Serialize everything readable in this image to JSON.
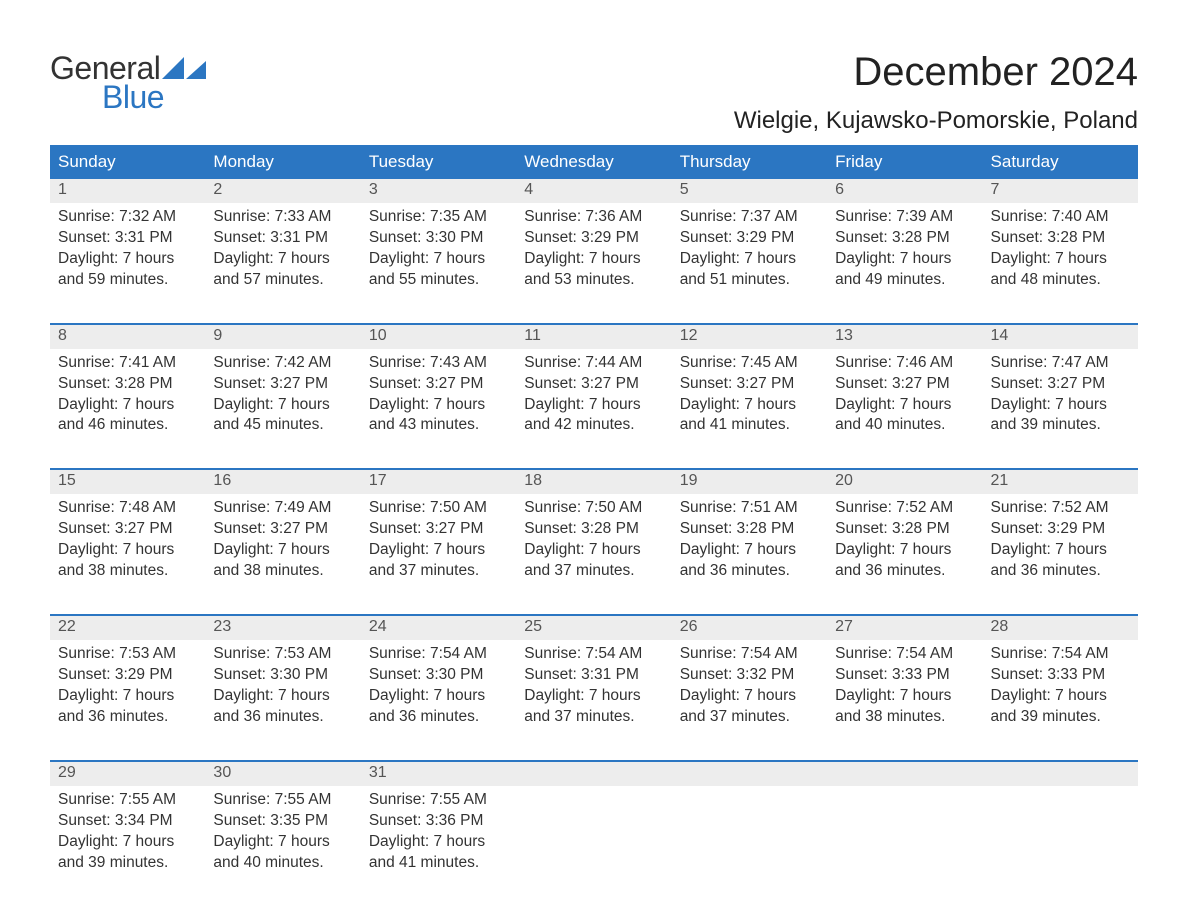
{
  "logo": {
    "text1": "General",
    "text2": "Blue",
    "tri_color": "#2b76c2"
  },
  "title": "December 2024",
  "location": "Wielgie, Kujawsko-Pomorskie, Poland",
  "colors": {
    "header_bg": "#2b76c2",
    "header_text": "#ffffff",
    "daynum_bg": "#ededed",
    "body_text": "#333333",
    "page_bg": "#ffffff"
  },
  "typography": {
    "title_fontsize": 40,
    "location_fontsize": 24,
    "header_fontsize": 17,
    "daynum_fontsize": 16,
    "body_fontsize": 15.5,
    "font_family": "Arial"
  },
  "layout": {
    "columns": 7,
    "rows": 5,
    "cell_body_lines": 4
  },
  "headers": [
    "Sunday",
    "Monday",
    "Tuesday",
    "Wednesday",
    "Thursday",
    "Friday",
    "Saturday"
  ],
  "weeks": [
    [
      {
        "n": "1",
        "sunrise": "7:32 AM",
        "sunset": "3:31 PM",
        "daylight": "7 hours and 59 minutes."
      },
      {
        "n": "2",
        "sunrise": "7:33 AM",
        "sunset": "3:31 PM",
        "daylight": "7 hours and 57 minutes."
      },
      {
        "n": "3",
        "sunrise": "7:35 AM",
        "sunset": "3:30 PM",
        "daylight": "7 hours and 55 minutes."
      },
      {
        "n": "4",
        "sunrise": "7:36 AM",
        "sunset": "3:29 PM",
        "daylight": "7 hours and 53 minutes."
      },
      {
        "n": "5",
        "sunrise": "7:37 AM",
        "sunset": "3:29 PM",
        "daylight": "7 hours and 51 minutes."
      },
      {
        "n": "6",
        "sunrise": "7:39 AM",
        "sunset": "3:28 PM",
        "daylight": "7 hours and 49 minutes."
      },
      {
        "n": "7",
        "sunrise": "7:40 AM",
        "sunset": "3:28 PM",
        "daylight": "7 hours and 48 minutes."
      }
    ],
    [
      {
        "n": "8",
        "sunrise": "7:41 AM",
        "sunset": "3:28 PM",
        "daylight": "7 hours and 46 minutes."
      },
      {
        "n": "9",
        "sunrise": "7:42 AM",
        "sunset": "3:27 PM",
        "daylight": "7 hours and 45 minutes."
      },
      {
        "n": "10",
        "sunrise": "7:43 AM",
        "sunset": "3:27 PM",
        "daylight": "7 hours and 43 minutes."
      },
      {
        "n": "11",
        "sunrise": "7:44 AM",
        "sunset": "3:27 PM",
        "daylight": "7 hours and 42 minutes."
      },
      {
        "n": "12",
        "sunrise": "7:45 AM",
        "sunset": "3:27 PM",
        "daylight": "7 hours and 41 minutes."
      },
      {
        "n": "13",
        "sunrise": "7:46 AM",
        "sunset": "3:27 PM",
        "daylight": "7 hours and 40 minutes."
      },
      {
        "n": "14",
        "sunrise": "7:47 AM",
        "sunset": "3:27 PM",
        "daylight": "7 hours and 39 minutes."
      }
    ],
    [
      {
        "n": "15",
        "sunrise": "7:48 AM",
        "sunset": "3:27 PM",
        "daylight": "7 hours and 38 minutes."
      },
      {
        "n": "16",
        "sunrise": "7:49 AM",
        "sunset": "3:27 PM",
        "daylight": "7 hours and 38 minutes."
      },
      {
        "n": "17",
        "sunrise": "7:50 AM",
        "sunset": "3:27 PM",
        "daylight": "7 hours and 37 minutes."
      },
      {
        "n": "18",
        "sunrise": "7:50 AM",
        "sunset": "3:28 PM",
        "daylight": "7 hours and 37 minutes."
      },
      {
        "n": "19",
        "sunrise": "7:51 AM",
        "sunset": "3:28 PM",
        "daylight": "7 hours and 36 minutes."
      },
      {
        "n": "20",
        "sunrise": "7:52 AM",
        "sunset": "3:28 PM",
        "daylight": "7 hours and 36 minutes."
      },
      {
        "n": "21",
        "sunrise": "7:52 AM",
        "sunset": "3:29 PM",
        "daylight": "7 hours and 36 minutes."
      }
    ],
    [
      {
        "n": "22",
        "sunrise": "7:53 AM",
        "sunset": "3:29 PM",
        "daylight": "7 hours and 36 minutes."
      },
      {
        "n": "23",
        "sunrise": "7:53 AM",
        "sunset": "3:30 PM",
        "daylight": "7 hours and 36 minutes."
      },
      {
        "n": "24",
        "sunrise": "7:54 AM",
        "sunset": "3:30 PM",
        "daylight": "7 hours and 36 minutes."
      },
      {
        "n": "25",
        "sunrise": "7:54 AM",
        "sunset": "3:31 PM",
        "daylight": "7 hours and 37 minutes."
      },
      {
        "n": "26",
        "sunrise": "7:54 AM",
        "sunset": "3:32 PM",
        "daylight": "7 hours and 37 minutes."
      },
      {
        "n": "27",
        "sunrise": "7:54 AM",
        "sunset": "3:33 PM",
        "daylight": "7 hours and 38 minutes."
      },
      {
        "n": "28",
        "sunrise": "7:54 AM",
        "sunset": "3:33 PM",
        "daylight": "7 hours and 39 minutes."
      }
    ],
    [
      {
        "n": "29",
        "sunrise": "7:55 AM",
        "sunset": "3:34 PM",
        "daylight": "7 hours and 39 minutes."
      },
      {
        "n": "30",
        "sunrise": "7:55 AM",
        "sunset": "3:35 PM",
        "daylight": "7 hours and 40 minutes."
      },
      {
        "n": "31",
        "sunrise": "7:55 AM",
        "sunset": "3:36 PM",
        "daylight": "7 hours and 41 minutes."
      },
      null,
      null,
      null,
      null
    ]
  ],
  "labels": {
    "sunrise": "Sunrise: ",
    "sunset": "Sunset: ",
    "daylight": "Daylight: "
  }
}
